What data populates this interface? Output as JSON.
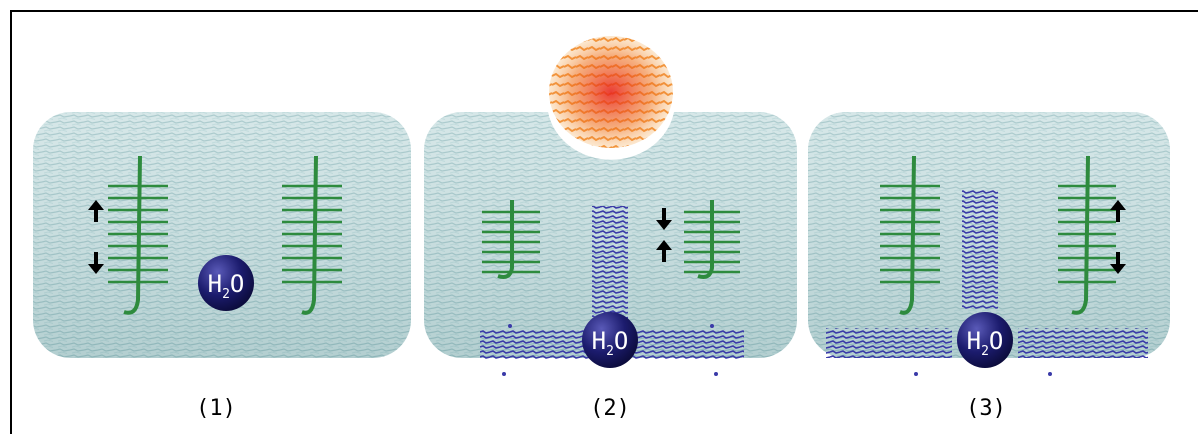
{
  "panels": [
    {
      "label": "(1)",
      "molecule": {
        "main": "H",
        "sub": "2",
        "tail": "O"
      }
    },
    {
      "label": "(2)",
      "molecule": {
        "main": "H",
        "sub": "2",
        "tail": "O"
      }
    },
    {
      "label": "(3)",
      "molecule": {
        "main": "H",
        "sub": "2",
        "tail": "O"
      }
    }
  ],
  "colors": {
    "gel": "#b4d3d5",
    "fiber": "#2e8b3e",
    "water": "#1c1c6e",
    "water_trail": "#3a3aa8",
    "heat_top": "#f7a34a",
    "heat_core": "#e8281e",
    "arrow": "#000000"
  }
}
